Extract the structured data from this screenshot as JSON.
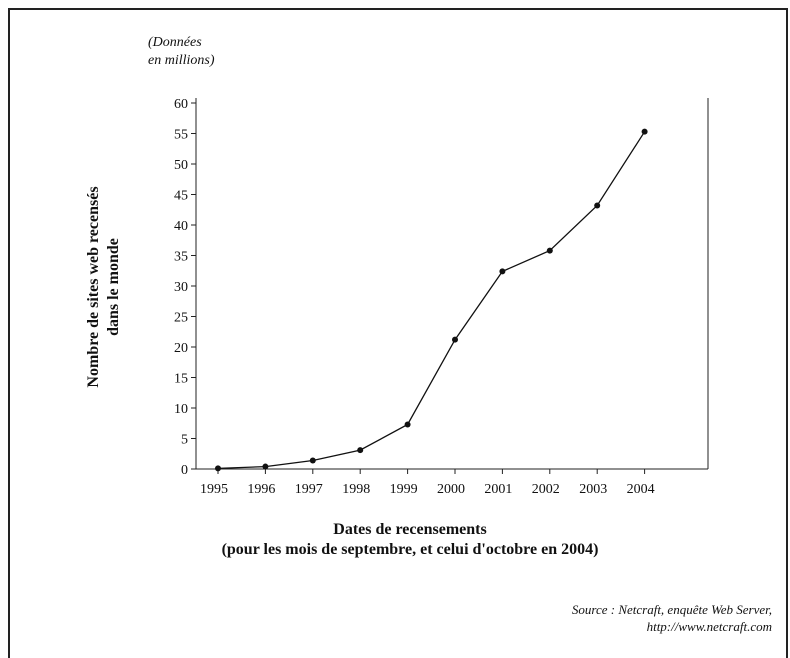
{
  "chart_data": {
    "type": "line",
    "unit_note_lines": [
      "(Données",
      "en millions)"
    ],
    "ylabel_lines": [
      "Nombre de sites web recensés",
      "dans le monde"
    ],
    "xlabel_lines": [
      "Dates de recensements",
      "(pour les mois de septembre, et celui d'octobre en 2004)"
    ],
    "x": [
      "1995",
      "1996",
      "1997",
      "1998",
      "1999",
      "2000",
      "2001",
      "2002",
      "2003",
      "2004"
    ],
    "values": [
      0.1,
      0.4,
      1.4,
      3.1,
      7.3,
      21.2,
      32.4,
      35.8,
      43.2,
      55.3
    ],
    "yticks": [
      0,
      5,
      10,
      15,
      20,
      25,
      30,
      35,
      40,
      45,
      50,
      55,
      60
    ],
    "ylim": [
      0,
      60
    ],
    "grid": false,
    "source_lines": [
      "Source : Netcraft, enquête Web Server,",
      "http://www.netcraft.com"
    ]
  }
}
